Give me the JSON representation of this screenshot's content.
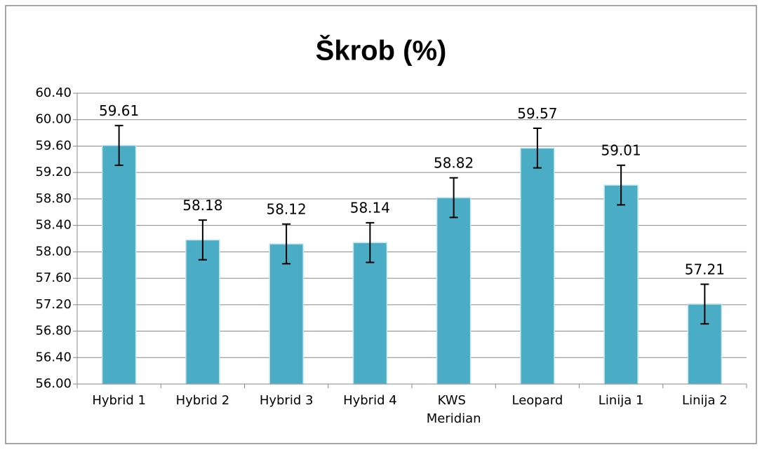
{
  "chart_data": {
    "type": "bar",
    "title": "Škrob (%)",
    "categories": [
      "Hybrid 1",
      "Hybrid 2",
      "Hybrid 3",
      "Hybrid 4",
      "KWS Meridian",
      "Leopard",
      "Linija 1",
      "Linija 2"
    ],
    "values": [
      59.61,
      58.18,
      58.12,
      58.14,
      58.82,
      59.57,
      59.01,
      57.21
    ],
    "errors": [
      0.3,
      0.3,
      0.3,
      0.3,
      0.3,
      0.3,
      0.3,
      0.3
    ],
    "color": "#4bacc6",
    "ylim": [
      56,
      60.4
    ],
    "yticks": [
      {
        "value": 56,
        "label": "56.00"
      },
      {
        "value": 56.4,
        "label": "56.40"
      },
      {
        "value": 56.8,
        "label": "56.80"
      },
      {
        "value": 57.2,
        "label": "57.20"
      },
      {
        "value": 57.6,
        "label": "57.60"
      },
      {
        "value": 58,
        "label": "58.00"
      },
      {
        "value": 58.4,
        "label": "58.40"
      },
      {
        "value": 58.8,
        "label": "58.80"
      },
      {
        "value": 59.2,
        "label": "59.20"
      },
      {
        "value": 59.6,
        "label": "59.60"
      },
      {
        "value": 60,
        "label": "60.00"
      },
      {
        "value": 60.4,
        "label": "60.40"
      }
    ],
    "grid": true
  }
}
